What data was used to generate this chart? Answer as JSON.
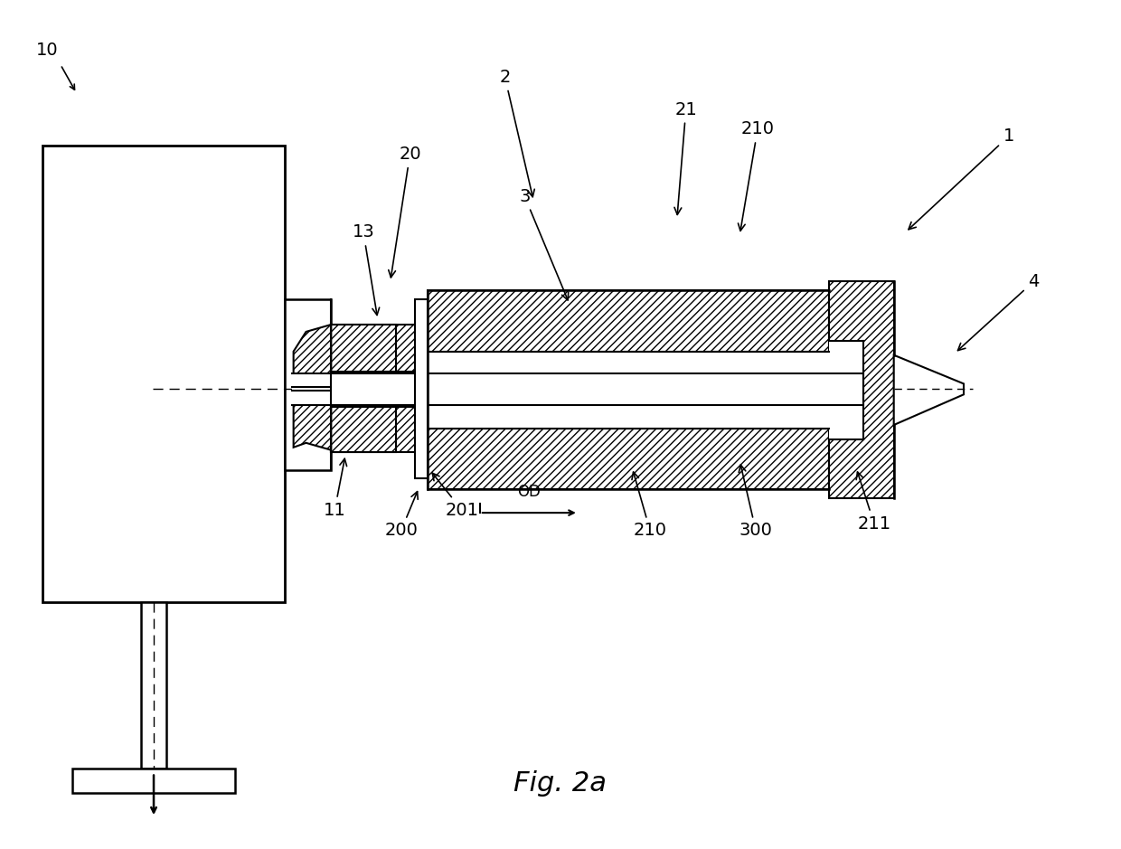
{
  "bg_color": "#ffffff",
  "line_color": "#000000",
  "fig_label": "Fig. 2a",
  "figsize": [
    12.4,
    9.39
  ],
  "dpi": 100
}
